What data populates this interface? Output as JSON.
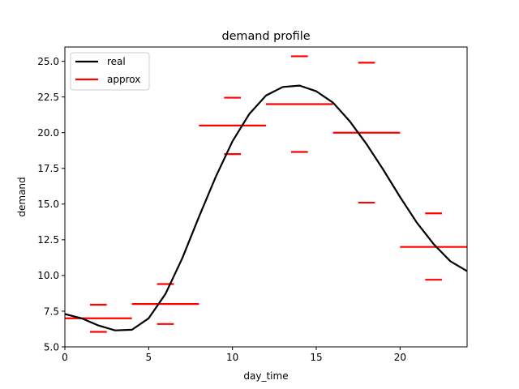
{
  "chart_data": {
    "type": "line",
    "title": "demand profile",
    "xlabel": "day_time",
    "ylabel": "demand",
    "xlim": [
      0,
      24
    ],
    "ylim": [
      5.0,
      26.0
    ],
    "x_ticks": [
      0,
      5,
      10,
      15,
      20
    ],
    "y_ticks": [
      5.0,
      7.5,
      10.0,
      12.5,
      15.0,
      17.5,
      20.0,
      22.5,
      25.0
    ],
    "legend_position": "top-left",
    "grid": false,
    "series": [
      {
        "name": "real",
        "color": "#000000",
        "points": [
          [
            0,
            7.3
          ],
          [
            1,
            7.0
          ],
          [
            2,
            6.5
          ],
          [
            3,
            6.15
          ],
          [
            4,
            6.2
          ],
          [
            5,
            7.0
          ],
          [
            6,
            8.7
          ],
          [
            7,
            11.2
          ],
          [
            8,
            14.1
          ],
          [
            9,
            16.9
          ],
          [
            10,
            19.4
          ],
          [
            11,
            21.3
          ],
          [
            12,
            22.6
          ],
          [
            13,
            23.2
          ],
          [
            14,
            23.3
          ],
          [
            15,
            22.9
          ],
          [
            16,
            22.1
          ],
          [
            17,
            20.8
          ],
          [
            18,
            19.2
          ],
          [
            19,
            17.4
          ],
          [
            20,
            15.5
          ],
          [
            21,
            13.7
          ],
          [
            22,
            12.2
          ],
          [
            23,
            11.0
          ],
          [
            24,
            10.3
          ]
        ]
      },
      {
        "name": "approx",
        "color": "#ff0000",
        "segments": [
          {
            "x0": 0,
            "x1": 4,
            "y": 7.0
          },
          {
            "x0": 1.5,
            "x1": 2.5,
            "y": 7.95
          },
          {
            "x0": 1.5,
            "x1": 2.5,
            "y": 6.05
          },
          {
            "x0": 4,
            "x1": 8,
            "y": 8.0
          },
          {
            "x0": 5.5,
            "x1": 6.5,
            "y": 9.4
          },
          {
            "x0": 5.5,
            "x1": 6.5,
            "y": 6.6
          },
          {
            "x0": 8,
            "x1": 12,
            "y": 20.5
          },
          {
            "x0": 9.5,
            "x1": 10.5,
            "y": 22.45
          },
          {
            "x0": 9.5,
            "x1": 10.5,
            "y": 18.5
          },
          {
            "x0": 12,
            "x1": 16,
            "y": 22.0
          },
          {
            "x0": 13.5,
            "x1": 14.5,
            "y": 25.35
          },
          {
            "x0": 13.5,
            "x1": 14.5,
            "y": 18.65
          },
          {
            "x0": 16,
            "x1": 20,
            "y": 20.0
          },
          {
            "x0": 17.5,
            "x1": 18.5,
            "y": 24.9
          },
          {
            "x0": 17.5,
            "x1": 18.5,
            "y": 15.1
          },
          {
            "x0": 20,
            "x1": 24,
            "y": 12.0
          },
          {
            "x0": 21.5,
            "x1": 22.5,
            "y": 14.35
          },
          {
            "x0": 21.5,
            "x1": 22.5,
            "y": 9.7
          }
        ]
      }
    ]
  }
}
